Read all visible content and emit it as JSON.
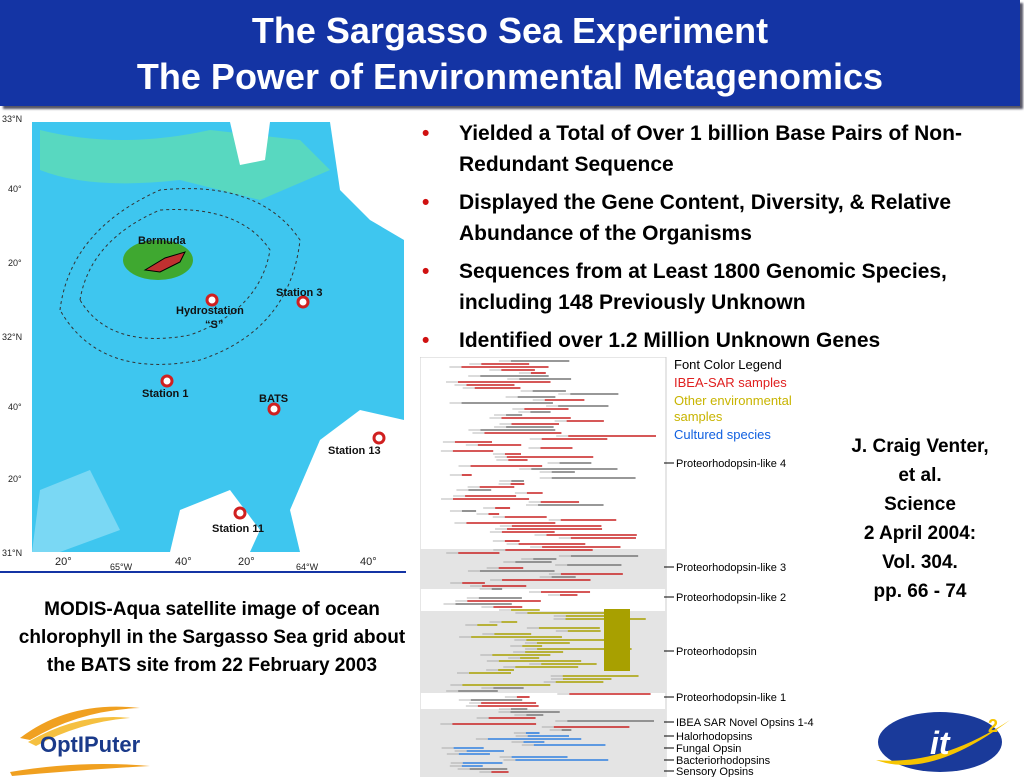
{
  "header": {
    "title_lines": [
      "The Sargasso Sea Experiment",
      "The Power of Environmental Metagenomics"
    ]
  },
  "map": {
    "lat_labels": [
      "33°N",
      "40°",
      "20°",
      "32°N",
      "40°",
      "20°",
      "31°N"
    ],
    "lon_labels": [
      "20°",
      "65°W",
      "40°",
      "20°",
      "64°W",
      "40°"
    ],
    "places": [
      "Bermuda",
      "Hydrostation",
      "“S”",
      "Station 3",
      "Station 1",
      "BATS",
      "Station 13",
      "Station 11"
    ]
  },
  "caption": "MODIS-Aqua satellite image of ocean chlorophyll in the Sargasso Sea grid about the BATS site from 22 February 2003",
  "bullets": [
    "Yielded a Total of  Over 1 billion Base Pairs of Non-Redundant Sequence",
    "Displayed the Gene Content, Diversity, & Relative Abundance of the Organisms",
    "Sequences from at Least 1800 Genomic Species, including 148 Previously Unknown",
    "Identified over 1.2 Million Unknown Genes"
  ],
  "tree": {
    "legend_title": "Font Color Legend",
    "legend": [
      "IBEA-SAR samples",
      "Other environmental samples",
      "Cultured species"
    ],
    "clades": [
      "Proteorhodopsin-like 4",
      "Proteorhodopsin-like 3",
      "Proteorhodopsin-like 2",
      "Proteorhodopsin",
      "Proteorhodopsin-like 1",
      "IBEA SAR Novel Opsins 1-4",
      "Halorhodopsins",
      "Fungal Opsin",
      "Bacteriorhodopsins",
      "Sensory Opsins"
    ]
  },
  "citation": [
    "J. Craig Venter,",
    "et al.",
    "Science",
    "2 April 2004:",
    "Vol. 304.",
    "pp. 66 - 74"
  ],
  "logos": {
    "left": "OptIPuter",
    "right": {
      "base": "it",
      "sup": "2"
    }
  }
}
